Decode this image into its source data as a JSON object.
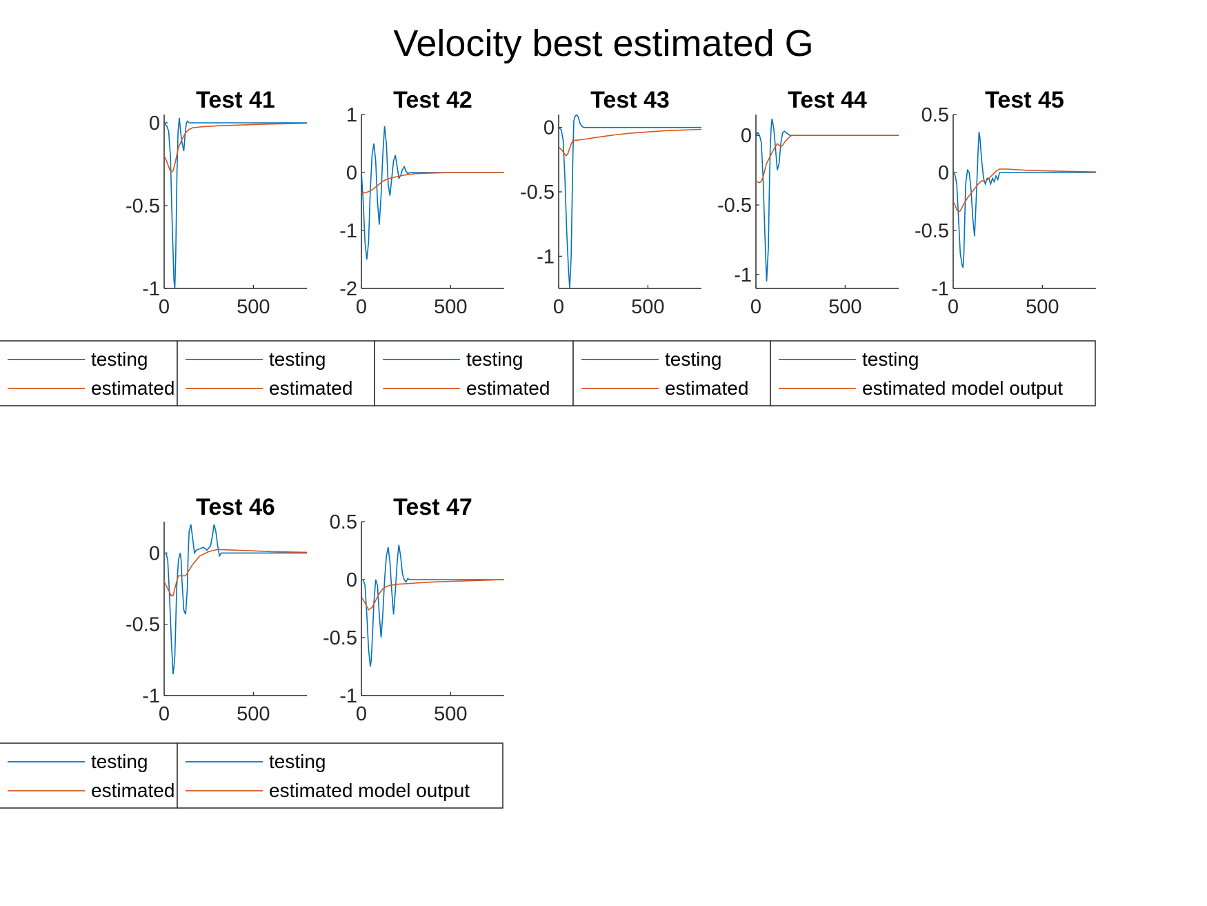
{
  "figure_title": "Velocity best estimated G",
  "colors": {
    "testing": "#0072BD",
    "estimated": "#D95319",
    "axis": "#262626",
    "legend_box": "#262626"
  },
  "chart_data": [
    {
      "type": "line",
      "title": "Test 41",
      "xlim": [
        0,
        800
      ],
      "ylim": [
        -1,
        0.05
      ],
      "xticks": [
        0,
        500
      ],
      "ytick_labels": [
        "0",
        "-0.5",
        "-1"
      ],
      "yticks": [
        0,
        -0.5,
        -1
      ],
      "legend": [
        "testing",
        "estimated"
      ],
      "series": [
        {
          "name": "testing",
          "x": [
            0,
            15,
            25,
            35,
            45,
            55,
            60,
            65,
            72,
            78,
            85,
            92,
            100,
            110,
            115,
            120,
            125,
            130,
            140,
            150,
            160,
            180,
            200,
            300,
            500,
            800
          ],
          "y": [
            0,
            -0.02,
            -0.05,
            -0.2,
            -0.6,
            -0.95,
            -1.0,
            -0.8,
            -0.3,
            -0.05,
            0.03,
            -0.05,
            -0.12,
            -0.17,
            -0.1,
            -0.04,
            0,
            0.01,
            0,
            0,
            0,
            0,
            0,
            0,
            0,
            0
          ]
        },
        {
          "name": "estimated",
          "x": [
            0,
            10,
            20,
            30,
            40,
            50,
            60,
            70,
            80,
            100,
            120,
            140,
            160,
            200,
            300,
            400,
            500,
            600,
            800
          ],
          "y": [
            -0.2,
            -0.22,
            -0.25,
            -0.28,
            -0.3,
            -0.29,
            -0.25,
            -0.2,
            -0.15,
            -0.1,
            -0.06,
            -0.04,
            -0.03,
            -0.025,
            -0.018,
            -0.014,
            -0.01,
            -0.007,
            -0.003
          ]
        }
      ]
    },
    {
      "type": "line",
      "title": "Test 42",
      "xlim": [
        0,
        800
      ],
      "ylim": [
        -2,
        1
      ],
      "xticks": [
        0,
        500
      ],
      "ytick_labels": [
        "1",
        "0",
        "-1",
        "-2"
      ],
      "yticks": [
        1,
        0,
        -1,
        -2
      ],
      "legend": [
        "testing",
        "estimated"
      ],
      "series": [
        {
          "name": "testing",
          "x": [
            0,
            10,
            20,
            30,
            40,
            50,
            60,
            70,
            80,
            90,
            100,
            110,
            120,
            130,
            140,
            150,
            160,
            170,
            180,
            190,
            200,
            210,
            220,
            230,
            240,
            250,
            260,
            270,
            280,
            290,
            300,
            400,
            500,
            800
          ],
          "y": [
            0,
            -0.5,
            -1.2,
            -1.5,
            -1.2,
            -0.3,
            0.3,
            0.5,
            0.2,
            -0.5,
            -0.9,
            -0.4,
            0.3,
            0.8,
            0.5,
            -0.2,
            -0.4,
            -0.1,
            0.2,
            0.3,
            0.1,
            -0.1,
            -0.05,
            0.05,
            0.1,
            0.02,
            -0.02,
            0,
            0,
            0,
            0,
            0,
            0,
            0
          ]
        },
        {
          "name": "estimated",
          "x": [
            0,
            20,
            40,
            60,
            80,
            100,
            120,
            140,
            160,
            200,
            250,
            300,
            400,
            500,
            800
          ],
          "y": [
            -0.35,
            -0.35,
            -0.33,
            -0.3,
            -0.25,
            -0.2,
            -0.15,
            -0.12,
            -0.1,
            -0.07,
            -0.04,
            -0.02,
            -0.01,
            0,
            0
          ]
        }
      ]
    },
    {
      "type": "line",
      "title": "Test 43",
      "xlim": [
        0,
        800
      ],
      "ylim": [
        -1.25,
        0.1
      ],
      "xticks": [
        0,
        500
      ],
      "ytick_labels": [
        "0",
        "-0.5",
        "-1"
      ],
      "yticks": [
        0,
        -0.5,
        -1
      ],
      "legend": [
        "testing",
        "estimated"
      ],
      "series": [
        {
          "name": "testing",
          "x": [
            0,
            15,
            25,
            35,
            45,
            55,
            62,
            70,
            75,
            80,
            85,
            90,
            100,
            110,
            120,
            130,
            140,
            150,
            200,
            300,
            500,
            800
          ],
          "y": [
            0,
            -0.02,
            -0.1,
            -0.4,
            -0.8,
            -1.1,
            -1.25,
            -1.0,
            -0.6,
            -0.2,
            0.05,
            0.08,
            0.1,
            0.08,
            0.03,
            0.01,
            0,
            0,
            0,
            0,
            0,
            0
          ]
        },
        {
          "name": "estimated",
          "x": [
            0,
            20,
            40,
            50,
            60,
            70,
            80,
            100,
            150,
            200,
            300,
            400,
            500,
            600,
            700,
            800
          ],
          "y": [
            -0.15,
            -0.18,
            -0.22,
            -0.21,
            -0.17,
            -0.13,
            -0.1,
            -0.1,
            -0.09,
            -0.08,
            -0.06,
            -0.045,
            -0.035,
            -0.025,
            -0.02,
            -0.015
          ]
        }
      ]
    },
    {
      "type": "line",
      "title": "Test 44",
      "xlim": [
        0,
        800
      ],
      "ylim": [
        -1.1,
        0.15
      ],
      "xticks": [
        0,
        500
      ],
      "ytick_labels": [
        "0",
        "-0.5",
        "-1"
      ],
      "yticks": [
        0,
        -0.5,
        -1
      ],
      "legend": [
        "testing",
        "estimated"
      ],
      "series": [
        {
          "name": "testing",
          "x": [
            0,
            10,
            20,
            30,
            40,
            50,
            60,
            70,
            75,
            80,
            85,
            90,
            100,
            110,
            120,
            130,
            140,
            150,
            160,
            170,
            180,
            190,
            200,
            220,
            250,
            300,
            500,
            800
          ],
          "y": [
            0,
            0.02,
            0,
            -0.05,
            -0.3,
            -0.7,
            -1.05,
            -0.8,
            -0.4,
            -0.1,
            0.05,
            0.12,
            0.05,
            -0.1,
            -0.25,
            -0.2,
            -0.05,
            0.02,
            0.03,
            0.02,
            0.01,
            0,
            0,
            0,
            0,
            0,
            0,
            0
          ]
        },
        {
          "name": "estimated",
          "x": [
            0,
            20,
            30,
            40,
            60,
            80,
            100,
            120,
            130,
            140,
            150,
            160,
            180,
            200,
            250,
            300,
            500,
            800
          ],
          "y": [
            -0.33,
            -0.34,
            -0.33,
            -0.3,
            -0.2,
            -0.15,
            -0.1,
            -0.06,
            -0.07,
            -0.08,
            -0.07,
            -0.05,
            -0.02,
            0,
            0,
            0,
            0,
            0
          ]
        }
      ]
    },
    {
      "type": "line",
      "title": "Test 45",
      "xlim": [
        0,
        800
      ],
      "ylim": [
        -1,
        0.5
      ],
      "xticks": [
        0,
        500
      ],
      "ytick_labels": [
        "0.5",
        "0",
        "-0.5",
        "-1"
      ],
      "yticks": [
        0.5,
        0,
        -0.5,
        -1
      ],
      "legend": [
        "testing",
        "estimated model output"
      ],
      "series": [
        {
          "name": "testing",
          "x": [
            0,
            10,
            20,
            30,
            40,
            50,
            55,
            60,
            65,
            70,
            80,
            90,
            100,
            110,
            120,
            130,
            140,
            145,
            150,
            160,
            170,
            180,
            190,
            200,
            210,
            220,
            230,
            240,
            250,
            260,
            300,
            500,
            800
          ],
          "y": [
            0,
            -0.02,
            -0.1,
            -0.4,
            -0.7,
            -0.8,
            -0.82,
            -0.7,
            -0.4,
            -0.1,
            0.02,
            0,
            -0.15,
            -0.4,
            -0.55,
            -0.2,
            0.2,
            0.35,
            0.3,
            0.1,
            -0.05,
            -0.1,
            -0.05,
            -0.05,
            -0.1,
            -0.05,
            -0.08,
            -0.03,
            -0.06,
            0,
            0,
            0,
            0
          ]
        },
        {
          "name": "estimated",
          "x": [
            0,
            10,
            20,
            30,
            40,
            60,
            80,
            100,
            120,
            140,
            160,
            180,
            200,
            220,
            240,
            260,
            300,
            400,
            500,
            800
          ],
          "y": [
            -0.25,
            -0.28,
            -0.32,
            -0.34,
            -0.33,
            -0.27,
            -0.22,
            -0.18,
            -0.14,
            -0.1,
            -0.07,
            -0.08,
            -0.05,
            -0.02,
            0.01,
            0.03,
            0.03,
            0.02,
            0.015,
            0.005
          ]
        }
      ]
    },
    {
      "type": "line",
      "title": "Test 46",
      "xlim": [
        0,
        800
      ],
      "ylim": [
        -1,
        0.22
      ],
      "xticks": [
        0,
        500
      ],
      "ytick_labels": [
        "0",
        "-0.5",
        "-1"
      ],
      "yticks": [
        0,
        -0.5,
        -1
      ],
      "legend": [
        "testing",
        "estimated"
      ],
      "series": [
        {
          "name": "testing",
          "x": [
            0,
            10,
            20,
            30,
            40,
            50,
            55,
            60,
            65,
            70,
            80,
            90,
            95,
            100,
            110,
            120,
            130,
            135,
            140,
            150,
            160,
            170,
            180,
            200,
            220,
            240,
            260,
            270,
            280,
            290,
            300,
            310,
            320,
            330,
            340,
            360,
            400,
            500,
            800
          ],
          "y": [
            0,
            0,
            -0.05,
            -0.3,
            -0.6,
            -0.85,
            -0.8,
            -0.72,
            -0.5,
            -0.25,
            -0.05,
            0,
            -0.05,
            -0.2,
            -0.4,
            -0.43,
            -0.25,
            0,
            0.15,
            0.2,
            0.1,
            0,
            0.02,
            0.03,
            0.04,
            0.02,
            0.05,
            0.12,
            0.2,
            0.15,
            0.05,
            -0.02,
            0,
            0,
            0,
            0,
            0,
            0,
            0
          ]
        },
        {
          "name": "estimated",
          "x": [
            0,
            20,
            40,
            50,
            60,
            70,
            80,
            100,
            120,
            140,
            160,
            180,
            200,
            250,
            300,
            400,
            500,
            600,
            800
          ],
          "y": [
            -0.2,
            -0.25,
            -0.3,
            -0.3,
            -0.25,
            -0.2,
            -0.16,
            -0.16,
            -0.16,
            -0.12,
            -0.08,
            -0.05,
            -0.02,
            0.01,
            0.025,
            0.02,
            0.015,
            0.01,
            0.005
          ]
        }
      ]
    },
    {
      "type": "line",
      "title": "Test 47",
      "xlim": [
        0,
        800
      ],
      "ylim": [
        -1,
        0.5
      ],
      "xticks": [
        0,
        500
      ],
      "ytick_labels": [
        "0.5",
        "0",
        "-0.5",
        "-1"
      ],
      "yticks": [
        0.5,
        0,
        -0.5,
        -1
      ],
      "legend": [
        "testing",
        "estimated model output"
      ],
      "series": [
        {
          "name": "testing",
          "x": [
            0,
            10,
            20,
            30,
            40,
            50,
            55,
            60,
            70,
            80,
            90,
            100,
            110,
            120,
            130,
            140,
            150,
            160,
            170,
            180,
            190,
            200,
            210,
            220,
            230,
            240,
            250,
            260,
            270,
            280,
            300,
            500,
            800
          ],
          "y": [
            0,
            0,
            -0.05,
            -0.3,
            -0.6,
            -0.75,
            -0.7,
            -0.55,
            -0.2,
            0,
            -0.05,
            -0.3,
            -0.5,
            -0.3,
            0,
            0.2,
            0.28,
            0.15,
            -0.1,
            -0.3,
            -0.1,
            0.15,
            0.3,
            0.2,
            0.05,
            0,
            -0.02,
            0.01,
            0,
            0,
            0,
            0,
            0
          ]
        },
        {
          "name": "estimated",
          "x": [
            0,
            20,
            40,
            60,
            80,
            100,
            120,
            140,
            160,
            200,
            250,
            300,
            400,
            500,
            600,
            700,
            800
          ],
          "y": [
            -0.15,
            -0.2,
            -0.26,
            -0.24,
            -0.18,
            -0.12,
            -0.08,
            -0.06,
            -0.05,
            -0.04,
            -0.035,
            -0.03,
            -0.02,
            -0.015,
            -0.01,
            -0.005,
            0
          ]
        }
      ]
    }
  ]
}
